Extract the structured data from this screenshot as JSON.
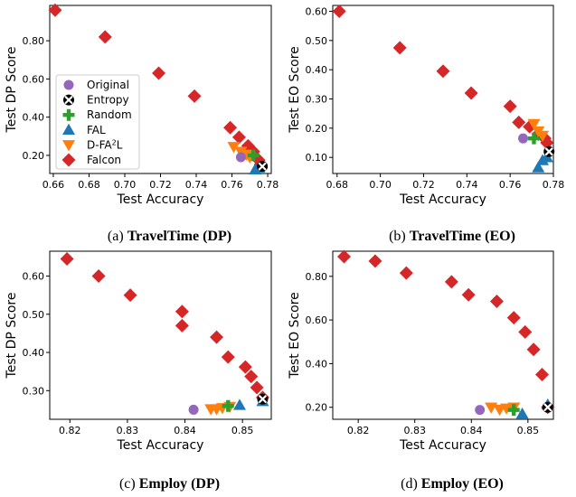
{
  "legend": [
    {
      "key": "original",
      "label": "Original",
      "color": "#9467bd",
      "marker": "circle"
    },
    {
      "key": "entropy",
      "label": "Entropy",
      "color": "#000000",
      "marker": "x-circle"
    },
    {
      "key": "random",
      "label": "Random",
      "color": "#2ca02c",
      "marker": "plus"
    },
    {
      "key": "fal",
      "label": "FAL",
      "color": "#1f77b4",
      "marker": "triangle-up"
    },
    {
      "key": "dfa2l",
      "label": "D-FA",
      "label_sup": "2",
      "label_post": "L",
      "color": "#ff7f0e",
      "marker": "triangle-down"
    },
    {
      "key": "falcon",
      "label": "Falcon",
      "color": "#d62728",
      "marker": "diamond"
    }
  ],
  "chart_data": [
    {
      "type": "scatter",
      "caption_prefix": "(a)",
      "caption_title": "TravelTime (DP)",
      "xlabel": "Test Accuracy",
      "ylabel": "Test DP Score",
      "xlim": [
        0.658,
        0.782
      ],
      "ylim": [
        0.105,
        0.985
      ],
      "xticks": [
        0.66,
        0.68,
        0.7,
        0.72,
        0.74,
        0.76,
        0.78
      ],
      "xtick_labels": [
        "0.66",
        "0.68",
        "0.70",
        "0.72",
        "0.74",
        "0.76",
        "0.78"
      ],
      "yticks": [
        0.2,
        0.4,
        0.6,
        0.8
      ],
      "ytick_labels": [
        "0.20",
        "0.40",
        "0.60",
        "0.80"
      ],
      "show_legend": true,
      "series": {
        "original": [
          [
            0.765,
            0.19
          ]
        ],
        "entropy": [
          [
            0.777,
            0.142
          ]
        ],
        "random": [
          [
            0.772,
            0.2
          ]
        ],
        "fal": [
          [
            0.773,
            0.125
          ],
          [
            0.775,
            0.135
          ]
        ],
        "dfa2l": [
          [
            0.761,
            0.245
          ],
          [
            0.765,
            0.22
          ],
          [
            0.768,
            0.205
          ],
          [
            0.77,
            0.19
          ]
        ],
        "falcon": [
          [
            0.661,
            0.96
          ],
          [
            0.689,
            0.82
          ],
          [
            0.719,
            0.63
          ],
          [
            0.739,
            0.51
          ],
          [
            0.759,
            0.345
          ],
          [
            0.764,
            0.295
          ],
          [
            0.769,
            0.25
          ],
          [
            0.772,
            0.22
          ],
          [
            0.775,
            0.175
          ],
          [
            0.776,
            0.152
          ]
        ]
      }
    },
    {
      "type": "scatter",
      "caption_prefix": "(b)",
      "caption_title": "TravelTime (EO)",
      "xlabel": "Test Accuracy",
      "ylabel": "Test EO Score",
      "xlim": [
        0.678,
        0.78
      ],
      "ylim": [
        0.045,
        0.62
      ],
      "xticks": [
        0.68,
        0.7,
        0.72,
        0.74,
        0.76,
        0.78
      ],
      "xtick_labels": [
        "0.68",
        "0.70",
        "0.72",
        "0.74",
        "0.76",
        "0.78"
      ],
      "yticks": [
        0.1,
        0.2,
        0.3,
        0.4,
        0.5,
        0.6
      ],
      "ytick_labels": [
        "0.10",
        "0.20",
        "0.30",
        "0.40",
        "0.50",
        "0.60"
      ],
      "show_legend": false,
      "series": {
        "original": [
          [
            0.766,
            0.165
          ]
        ],
        "entropy": [
          [
            0.778,
            0.12
          ]
        ],
        "random": [
          [
            0.771,
            0.165
          ]
        ],
        "fal": [
          [
            0.773,
            0.065
          ],
          [
            0.775,
            0.09
          ],
          [
            0.777,
            0.1
          ]
        ],
        "dfa2l": [
          [
            0.771,
            0.215
          ],
          [
            0.773,
            0.19
          ],
          [
            0.775,
            0.175
          ]
        ],
        "falcon": [
          [
            0.681,
            0.6
          ],
          [
            0.709,
            0.475
          ],
          [
            0.729,
            0.395
          ],
          [
            0.742,
            0.32
          ],
          [
            0.76,
            0.275
          ],
          [
            0.764,
            0.22
          ],
          [
            0.769,
            0.205
          ],
          [
            0.773,
            0.18
          ],
          [
            0.776,
            0.165
          ],
          [
            0.777,
            0.15
          ]
        ]
      }
    },
    {
      "type": "scatter",
      "caption_prefix": "(c)",
      "caption_title": "Employ (DP)",
      "xlabel": "Test Accuracy",
      "ylabel": "Test DP Score",
      "xlim": [
        0.8165,
        0.855
      ],
      "ylim": [
        0.225,
        0.665
      ],
      "xticks": [
        0.82,
        0.83,
        0.84,
        0.85
      ],
      "xtick_labels": [
        "0.82",
        "0.83",
        "0.84",
        "0.85"
      ],
      "yticks": [
        0.3,
        0.4,
        0.5,
        0.6
      ],
      "ytick_labels": [
        "0.30",
        "0.40",
        "0.50",
        "0.60"
      ],
      "show_legend": false,
      "series": {
        "original": [
          [
            0.8415,
            0.25
          ]
        ],
        "entropy": [
          [
            0.8535,
            0.278
          ]
        ],
        "random": [
          [
            0.8475,
            0.26
          ]
        ],
        "fal": [
          [
            0.8495,
            0.262
          ],
          [
            0.8535,
            0.272
          ]
        ],
        "dfa2l": [
          [
            0.8445,
            0.252
          ],
          [
            0.8455,
            0.252
          ],
          [
            0.8465,
            0.255
          ],
          [
            0.8478,
            0.258
          ]
        ],
        "falcon": [
          [
            0.8195,
            0.645
          ],
          [
            0.825,
            0.6
          ],
          [
            0.8305,
            0.55
          ],
          [
            0.8395,
            0.507
          ],
          [
            0.8395,
            0.47
          ],
          [
            0.8455,
            0.44
          ],
          [
            0.8475,
            0.388
          ],
          [
            0.8505,
            0.362
          ],
          [
            0.8515,
            0.337
          ],
          [
            0.8525,
            0.308
          ],
          [
            0.8535,
            0.282
          ]
        ]
      }
    },
    {
      "type": "scatter",
      "caption_prefix": "(d)",
      "caption_title": "Employ (EO)",
      "xlabel": "Test Accuracy",
      "ylabel": "Test EO Score",
      "xlim": [
        0.8155,
        0.8545
      ],
      "ylim": [
        0.145,
        0.915
      ],
      "xticks": [
        0.82,
        0.83,
        0.84,
        0.85
      ],
      "xtick_labels": [
        "0.82",
        "0.83",
        "0.84",
        "0.85"
      ],
      "yticks": [
        0.2,
        0.4,
        0.6,
        0.8
      ],
      "ytick_labels": [
        "0.20",
        "0.40",
        "0.60",
        "0.80"
      ],
      "show_legend": false,
      "series": {
        "original": [
          [
            0.8415,
            0.188
          ]
        ],
        "entropy": [
          [
            0.8535,
            0.2
          ]
        ],
        "random": [
          [
            0.8475,
            0.188
          ]
        ],
        "fal": [
          [
            0.849,
            0.17
          ],
          [
            0.8535,
            0.212
          ]
        ],
        "dfa2l": [
          [
            0.8435,
            0.2
          ],
          [
            0.845,
            0.19
          ],
          [
            0.8462,
            0.195
          ],
          [
            0.8475,
            0.2
          ]
        ],
        "falcon": [
          [
            0.8175,
            0.89
          ],
          [
            0.823,
            0.87
          ],
          [
            0.8285,
            0.815
          ],
          [
            0.8365,
            0.775
          ],
          [
            0.8395,
            0.715
          ],
          [
            0.8445,
            0.685
          ],
          [
            0.8475,
            0.61
          ],
          [
            0.8495,
            0.545
          ],
          [
            0.851,
            0.465
          ],
          [
            0.8525,
            0.35
          ],
          [
            0.8535,
            0.2
          ]
        ]
      }
    }
  ]
}
